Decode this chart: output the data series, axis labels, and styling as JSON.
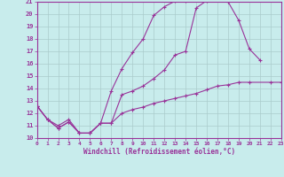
{
  "xlabel": "Windchill (Refroidissement éolien,°C)",
  "xlim": [
    0,
    23
  ],
  "ylim": [
    10,
    21
  ],
  "xticks": [
    0,
    1,
    2,
    3,
    4,
    5,
    6,
    7,
    8,
    9,
    10,
    11,
    12,
    13,
    14,
    15,
    16,
    17,
    18,
    19,
    20,
    21,
    22,
    23
  ],
  "yticks": [
    10,
    11,
    12,
    13,
    14,
    15,
    16,
    17,
    18,
    19,
    20,
    21
  ],
  "bg": "#c8ecec",
  "lc": "#993399",
  "gc": "#aacccc",
  "line1": {
    "x": [
      0,
      1,
      2,
      3,
      4,
      5,
      6,
      7,
      8,
      9,
      10,
      11,
      12,
      13,
      14,
      15,
      16,
      17,
      18,
      19,
      20,
      21
    ],
    "y": [
      12.6,
      11.5,
      10.8,
      11.3,
      10.4,
      10.4,
      11.2,
      11.2,
      13.5,
      13.8,
      14.2,
      14.8,
      15.5,
      16.7,
      17.0,
      20.5,
      21.1,
      21.2,
      21.0,
      19.5,
      17.2,
      16.3
    ]
  },
  "line2": {
    "x": [
      0,
      1,
      2,
      3,
      4,
      5,
      6,
      7,
      8,
      9,
      10,
      11,
      12,
      13,
      14,
      15,
      16,
      17,
      18
    ],
    "y": [
      12.6,
      11.5,
      10.8,
      11.3,
      10.4,
      10.4,
      11.2,
      13.8,
      15.6,
      16.9,
      18.0,
      19.9,
      20.6,
      21.05,
      21.1,
      21.2,
      21.2,
      21.2,
      21.0
    ]
  },
  "line3": {
    "x": [
      0,
      1,
      2,
      3,
      4,
      5,
      6,
      7,
      8,
      9,
      10,
      11,
      12,
      13,
      14,
      15,
      16,
      17,
      18,
      19,
      20,
      22,
      23
    ],
    "y": [
      12.6,
      11.5,
      11.0,
      11.5,
      10.4,
      10.4,
      11.2,
      11.2,
      12.0,
      12.3,
      12.5,
      12.8,
      13.0,
      13.2,
      13.4,
      13.6,
      13.9,
      14.2,
      14.3,
      14.5,
      14.5,
      14.5,
      14.5
    ]
  }
}
